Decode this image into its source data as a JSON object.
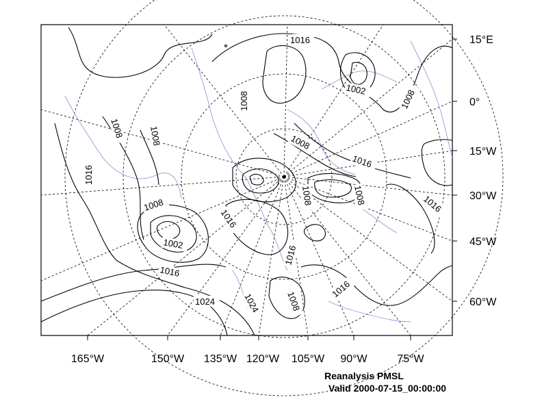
{
  "caption": {
    "title": "Reanalysis PMSL",
    "valid": "Valid 2000-07-15_00:00:00"
  },
  "axes": {
    "longitude_labels": [
      "165°W",
      "150°W",
      "135°W",
      "120°W",
      "105°W",
      "90°W",
      "75°W"
    ],
    "latitude_labels": [
      "15°E",
      "0°",
      "15°W",
      "30°W",
      "45°W",
      "60°W"
    ]
  },
  "contour_labels": [
    "1016",
    "1008",
    "1002",
    "1008",
    "1008",
    "1008",
    "1008",
    "1016",
    "1016",
    "1008",
    "1008",
    "1016",
    "1008",
    "1016",
    "1002",
    "1016",
    "1016",
    "1024",
    "1024",
    "1008",
    "1016"
  ],
  "colors": {
    "contour": "#000000",
    "coastline": "#a98fd6",
    "background": "#ffffff"
  }
}
